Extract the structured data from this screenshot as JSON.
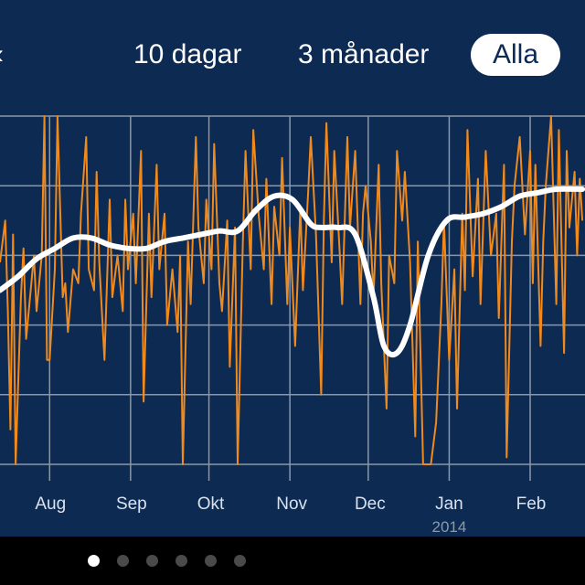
{
  "range_tabs": [
    {
      "label": "10 dagar",
      "selected": false
    },
    {
      "label": "3 månader",
      "selected": false
    },
    {
      "label": "Alla",
      "selected": true
    }
  ],
  "pager": {
    "count": 6,
    "active_index": 0
  },
  "colors": {
    "background": "#0c2a52",
    "grid": "#8b97a6",
    "series_daily": "#f08a1c",
    "series_trend": "#ffffff"
  },
  "chart_data": {
    "type": "line",
    "x_tick_labels": [
      "Aug",
      "Sep",
      "Okt",
      "Nov",
      "Dec",
      "Jan",
      "Feb"
    ],
    "x_year_label": "2014",
    "xlim": [
      "2013-07-13",
      "2014-02-22"
    ],
    "ylim": [
      0,
      5
    ],
    "grid": true,
    "series": [
      {
        "values": [
          [
            "2013-07-13",
            2.9
          ],
          [
            "2013-07-15",
            3.5
          ],
          [
            "2013-07-16",
            2.2
          ],
          [
            "2013-07-17",
            0.5
          ],
          [
            "2013-07-18",
            3.3
          ],
          [
            "2013-07-19",
            0.0
          ],
          [
            "2013-07-21",
            2.4
          ],
          [
            "2013-07-22",
            3.1
          ],
          [
            "2013-07-23",
            1.8
          ],
          [
            "2013-07-25",
            2.6
          ],
          [
            "2013-07-26",
            3.0
          ],
          [
            "2013-07-27",
            2.2
          ],
          [
            "2013-07-29",
            3.0
          ],
          [
            "2013-07-30",
            5.0
          ],
          [
            "2013-07-31",
            1.5
          ],
          [
            "2013-08-01",
            1.5
          ],
          [
            "2013-08-03",
            2.8
          ],
          [
            "2013-08-04",
            5.0
          ],
          [
            "2013-08-06",
            2.4
          ],
          [
            "2013-08-07",
            2.6
          ],
          [
            "2013-08-08",
            1.9
          ],
          [
            "2013-08-10",
            2.8
          ],
          [
            "2013-08-12",
            2.6
          ],
          [
            "2013-08-13",
            3.6
          ],
          [
            "2013-08-15",
            4.7
          ],
          [
            "2013-08-16",
            2.8
          ],
          [
            "2013-08-18",
            2.5
          ],
          [
            "2013-08-19",
            4.2
          ],
          [
            "2013-08-20",
            2.9
          ],
          [
            "2013-08-22",
            1.5
          ],
          [
            "2013-08-24",
            3.8
          ],
          [
            "2013-08-25",
            2.4
          ],
          [
            "2013-08-27",
            3.0
          ],
          [
            "2013-08-29",
            2.2
          ],
          [
            "2013-08-30",
            3.8
          ],
          [
            "2013-08-31",
            2.8
          ],
          [
            "2013-09-02",
            3.6
          ],
          [
            "2013-09-03",
            2.6
          ],
          [
            "2013-09-05",
            4.5
          ],
          [
            "2013-09-06",
            0.9
          ],
          [
            "2013-09-08",
            3.6
          ],
          [
            "2013-09-09",
            2.4
          ],
          [
            "2013-09-11",
            4.3
          ],
          [
            "2013-09-12",
            2.8
          ],
          [
            "2013-09-14",
            3.6
          ],
          [
            "2013-09-15",
            2.0
          ],
          [
            "2013-09-17",
            2.8
          ],
          [
            "2013-09-19",
            1.9
          ],
          [
            "2013-09-20",
            3.0
          ],
          [
            "2013-09-21",
            0.0
          ],
          [
            "2013-09-23",
            3.2
          ],
          [
            "2013-09-24",
            2.3
          ],
          [
            "2013-09-26",
            4.7
          ],
          [
            "2013-09-27",
            3.4
          ],
          [
            "2013-09-29",
            2.6
          ],
          [
            "2013-09-30",
            3.8
          ],
          [
            "2013-10-02",
            2.8
          ],
          [
            "2013-10-03",
            4.6
          ],
          [
            "2013-10-05",
            2.6
          ],
          [
            "2013-10-06",
            2.2
          ],
          [
            "2013-10-08",
            3.5
          ],
          [
            "2013-10-09",
            1.4
          ],
          [
            "2013-10-11",
            3.4
          ],
          [
            "2013-10-12",
            0.0
          ],
          [
            "2013-10-14",
            3.2
          ],
          [
            "2013-10-15",
            4.5
          ],
          [
            "2013-10-17",
            2.8
          ],
          [
            "2013-10-18",
            4.8
          ],
          [
            "2013-10-20",
            3.6
          ],
          [
            "2013-10-22",
            2.8
          ],
          [
            "2013-10-23",
            4.1
          ],
          [
            "2013-10-25",
            2.3
          ],
          [
            "2013-10-26",
            3.7
          ],
          [
            "2013-10-28",
            3.0
          ],
          [
            "2013-10-29",
            4.4
          ],
          [
            "2013-10-31",
            2.3
          ],
          [
            "2013-11-01",
            3.4
          ],
          [
            "2013-11-03",
            1.7
          ],
          [
            "2013-11-05",
            3.7
          ],
          [
            "2013-11-06",
            2.5
          ],
          [
            "2013-11-08",
            3.9
          ],
          [
            "2013-11-09",
            4.7
          ],
          [
            "2013-11-11",
            3.3
          ],
          [
            "2013-11-13",
            1.0
          ],
          [
            "2013-11-14",
            3.5
          ],
          [
            "2013-11-15",
            4.9
          ],
          [
            "2013-11-17",
            2.9
          ],
          [
            "2013-11-18",
            4.5
          ],
          [
            "2013-11-20",
            3.1
          ],
          [
            "2013-11-21",
            2.3
          ],
          [
            "2013-11-23",
            4.7
          ],
          [
            "2013-11-24",
            3.4
          ],
          [
            "2013-11-26",
            4.5
          ],
          [
            "2013-11-28",
            2.3
          ],
          [
            "2013-11-29",
            3.6
          ],
          [
            "2013-11-30",
            4.0
          ],
          [
            "2013-12-02",
            3.2
          ],
          [
            "2013-12-03",
            2.4
          ],
          [
            "2013-12-05",
            4.3
          ],
          [
            "2013-12-06",
            2.6
          ],
          [
            "2013-12-08",
            0.8
          ],
          [
            "2013-12-09",
            3.0
          ],
          [
            "2013-12-11",
            2.6
          ],
          [
            "2013-12-12",
            4.5
          ],
          [
            "2013-12-14",
            3.5
          ],
          [
            "2013-12-15",
            4.2
          ],
          [
            "2013-12-17",
            2.9
          ],
          [
            "2013-12-19",
            0.4
          ],
          [
            "2013-12-20",
            3.2
          ],
          [
            "2013-12-22",
            0.0
          ],
          [
            "2013-12-25",
            0.0
          ],
          [
            "2013-12-27",
            0.6
          ],
          [
            "2013-12-29",
            2.3
          ],
          [
            "2013-12-30",
            3.5
          ],
          [
            "2014-01-01",
            1.5
          ],
          [
            "2014-01-03",
            2.8
          ],
          [
            "2014-01-04",
            0.8
          ],
          [
            "2014-01-06",
            3.6
          ],
          [
            "2014-01-07",
            2.5
          ],
          [
            "2014-01-08",
            4.8
          ],
          [
            "2014-01-10",
            2.7
          ],
          [
            "2014-01-12",
            4.1
          ],
          [
            "2014-01-13",
            2.3
          ],
          [
            "2014-01-15",
            4.5
          ],
          [
            "2014-01-17",
            3.0
          ],
          [
            "2014-01-19",
            3.6
          ],
          [
            "2014-01-20",
            2.1
          ],
          [
            "2014-01-22",
            4.3
          ],
          [
            "2014-01-23",
            0.1
          ],
          [
            "2014-01-25",
            3.2
          ],
          [
            "2014-01-26",
            4.0
          ],
          [
            "2014-01-28",
            4.7
          ],
          [
            "2014-01-30",
            3.3
          ],
          [
            "2014-02-01",
            4.5
          ],
          [
            "2014-02-02",
            2.6
          ],
          [
            "2014-02-03",
            4.3
          ],
          [
            "2014-02-05",
            1.7
          ],
          [
            "2014-02-06",
            3.2
          ],
          [
            "2014-02-07",
            4.0
          ],
          [
            "2014-02-09",
            5.0
          ],
          [
            "2014-02-11",
            2.3
          ],
          [
            "2014-02-12",
            4.8
          ],
          [
            "2014-02-14",
            1.6
          ],
          [
            "2014-02-15",
            4.5
          ],
          [
            "2014-02-16",
            3.4
          ],
          [
            "2014-02-18",
            4.2
          ],
          [
            "2014-02-19",
            3.0
          ],
          [
            "2014-02-20",
            4.1
          ],
          [
            "2014-02-21",
            3.5
          ]
        ]
      },
      {
        "values": [
          [
            "2013-07-13",
            2.5
          ],
          [
            "2013-07-20",
            2.7
          ],
          [
            "2013-07-27",
            2.95
          ],
          [
            "2013-08-03",
            3.1
          ],
          [
            "2013-08-10",
            3.25
          ],
          [
            "2013-08-17",
            3.25
          ],
          [
            "2013-08-24",
            3.15
          ],
          [
            "2013-08-31",
            3.1
          ],
          [
            "2013-09-07",
            3.1
          ],
          [
            "2013-09-14",
            3.2
          ],
          [
            "2013-09-21",
            3.25
          ],
          [
            "2013-09-28",
            3.3
          ],
          [
            "2013-10-05",
            3.35
          ],
          [
            "2013-10-12",
            3.35
          ],
          [
            "2013-10-19",
            3.65
          ],
          [
            "2013-10-26",
            3.85
          ],
          [
            "2013-11-02",
            3.8
          ],
          [
            "2013-11-09",
            3.45
          ],
          [
            "2013-11-13",
            3.4
          ],
          [
            "2013-11-19",
            3.4
          ],
          [
            "2013-11-26",
            3.3
          ],
          [
            "2013-12-03",
            2.4
          ],
          [
            "2013-12-07",
            1.7
          ],
          [
            "2013-12-12",
            1.6
          ],
          [
            "2013-12-17",
            2.0
          ],
          [
            "2013-12-24",
            3.0
          ],
          [
            "2013-12-31",
            3.5
          ],
          [
            "2014-01-07",
            3.55
          ],
          [
            "2014-01-14",
            3.6
          ],
          [
            "2014-01-21",
            3.7
          ],
          [
            "2014-01-28",
            3.85
          ],
          [
            "2014-02-04",
            3.9
          ],
          [
            "2014-02-11",
            3.95
          ],
          [
            "2014-02-21",
            3.95
          ]
        ]
      }
    ]
  }
}
